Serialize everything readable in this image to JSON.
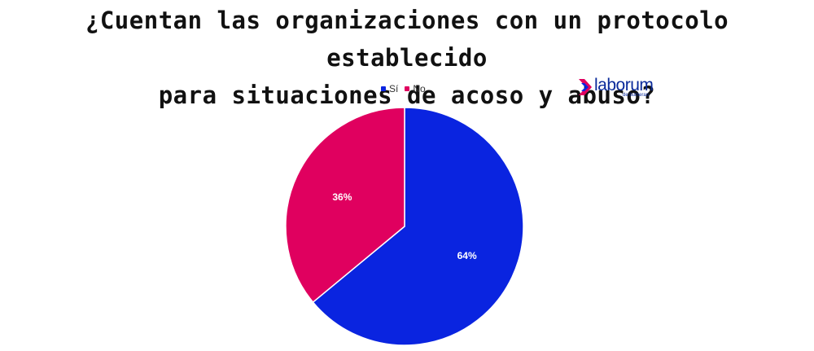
{
  "chart_data": {
    "type": "pie",
    "title_lines": [
      "¿Cuentan las organizaciones con un protocolo establecido",
      "para situaciones de acoso y abuso?"
    ],
    "categories": [
      "Sí",
      "No"
    ],
    "values": [
      64,
      36
    ],
    "data_labels": [
      "64%",
      "36%"
    ],
    "colors": [
      "#0a24e0",
      "#e0005f"
    ],
    "legend_position": "top"
  },
  "brand": {
    "name": "laborum",
    "tagline": "de bumeran",
    "color": "#0a2a9a",
    "accent": "#e0005f"
  }
}
